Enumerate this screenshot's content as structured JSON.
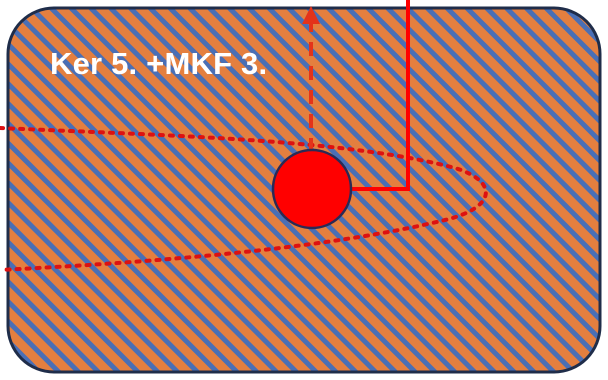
{
  "diagram": {
    "label": "Ker 5. +MKF 3.",
    "colors": {
      "hatch_orange": "#e47f3f",
      "hatch_blue": "#4a6fb5",
      "panel_border": "#1f2d4a",
      "accent_red": "#ff0000",
      "dashed_line": "#e4331a",
      "dotted_line": "#dd1111",
      "node_outline": "#2a2a55"
    },
    "elements": {
      "panel": "rounded-rectangle-hatched",
      "node": "red-circle",
      "arrow": "dashed-up-arrow",
      "connector": "solid-red-connector",
      "boundary": "dotted-red-teardrop-boundary"
    }
  }
}
